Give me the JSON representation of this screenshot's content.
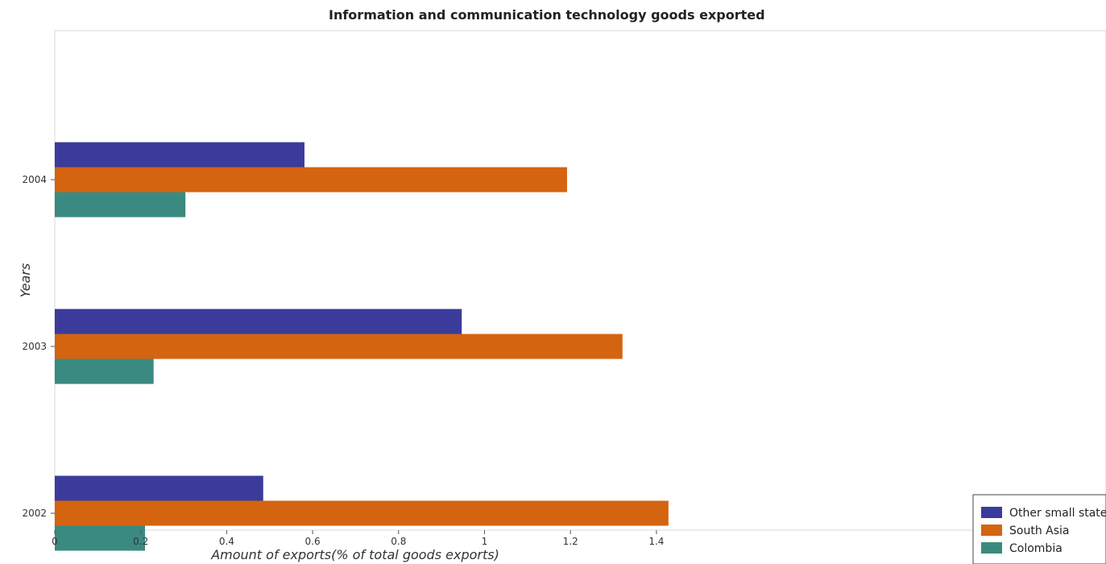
{
  "chart_data": {
    "type": "bar",
    "orientation": "horizontal",
    "title": "Information and communication technology goods exported",
    "xlabel": "Amount of exports(% of total goods exports)",
    "ylabel": "Years",
    "categories": [
      "2002",
      "2003",
      "2004"
    ],
    "xlim": [
      0,
      1.5
    ],
    "x_ticks": [
      "0",
      "0.2",
      "0.4",
      "0.6",
      "0.8",
      "1",
      "1.2",
      "1.4"
    ],
    "x_tick_values": [
      0,
      0.2,
      0.4,
      0.6,
      0.8,
      1.0,
      1.2,
      1.4
    ],
    "grid": false,
    "legend_position": "bottom-right",
    "series": [
      {
        "name": "Other small states",
        "color": "#3b3b9b",
        "values": [
          0.485,
          0.947,
          0.581
        ]
      },
      {
        "name": "South Asia",
        "color": "#d4640f",
        "values": [
          1.428,
          1.321,
          1.192
        ]
      },
      {
        "name": "Colombia",
        "color": "#3a8a82",
        "values": [
          0.21,
          0.23,
          0.304
        ]
      }
    ]
  }
}
